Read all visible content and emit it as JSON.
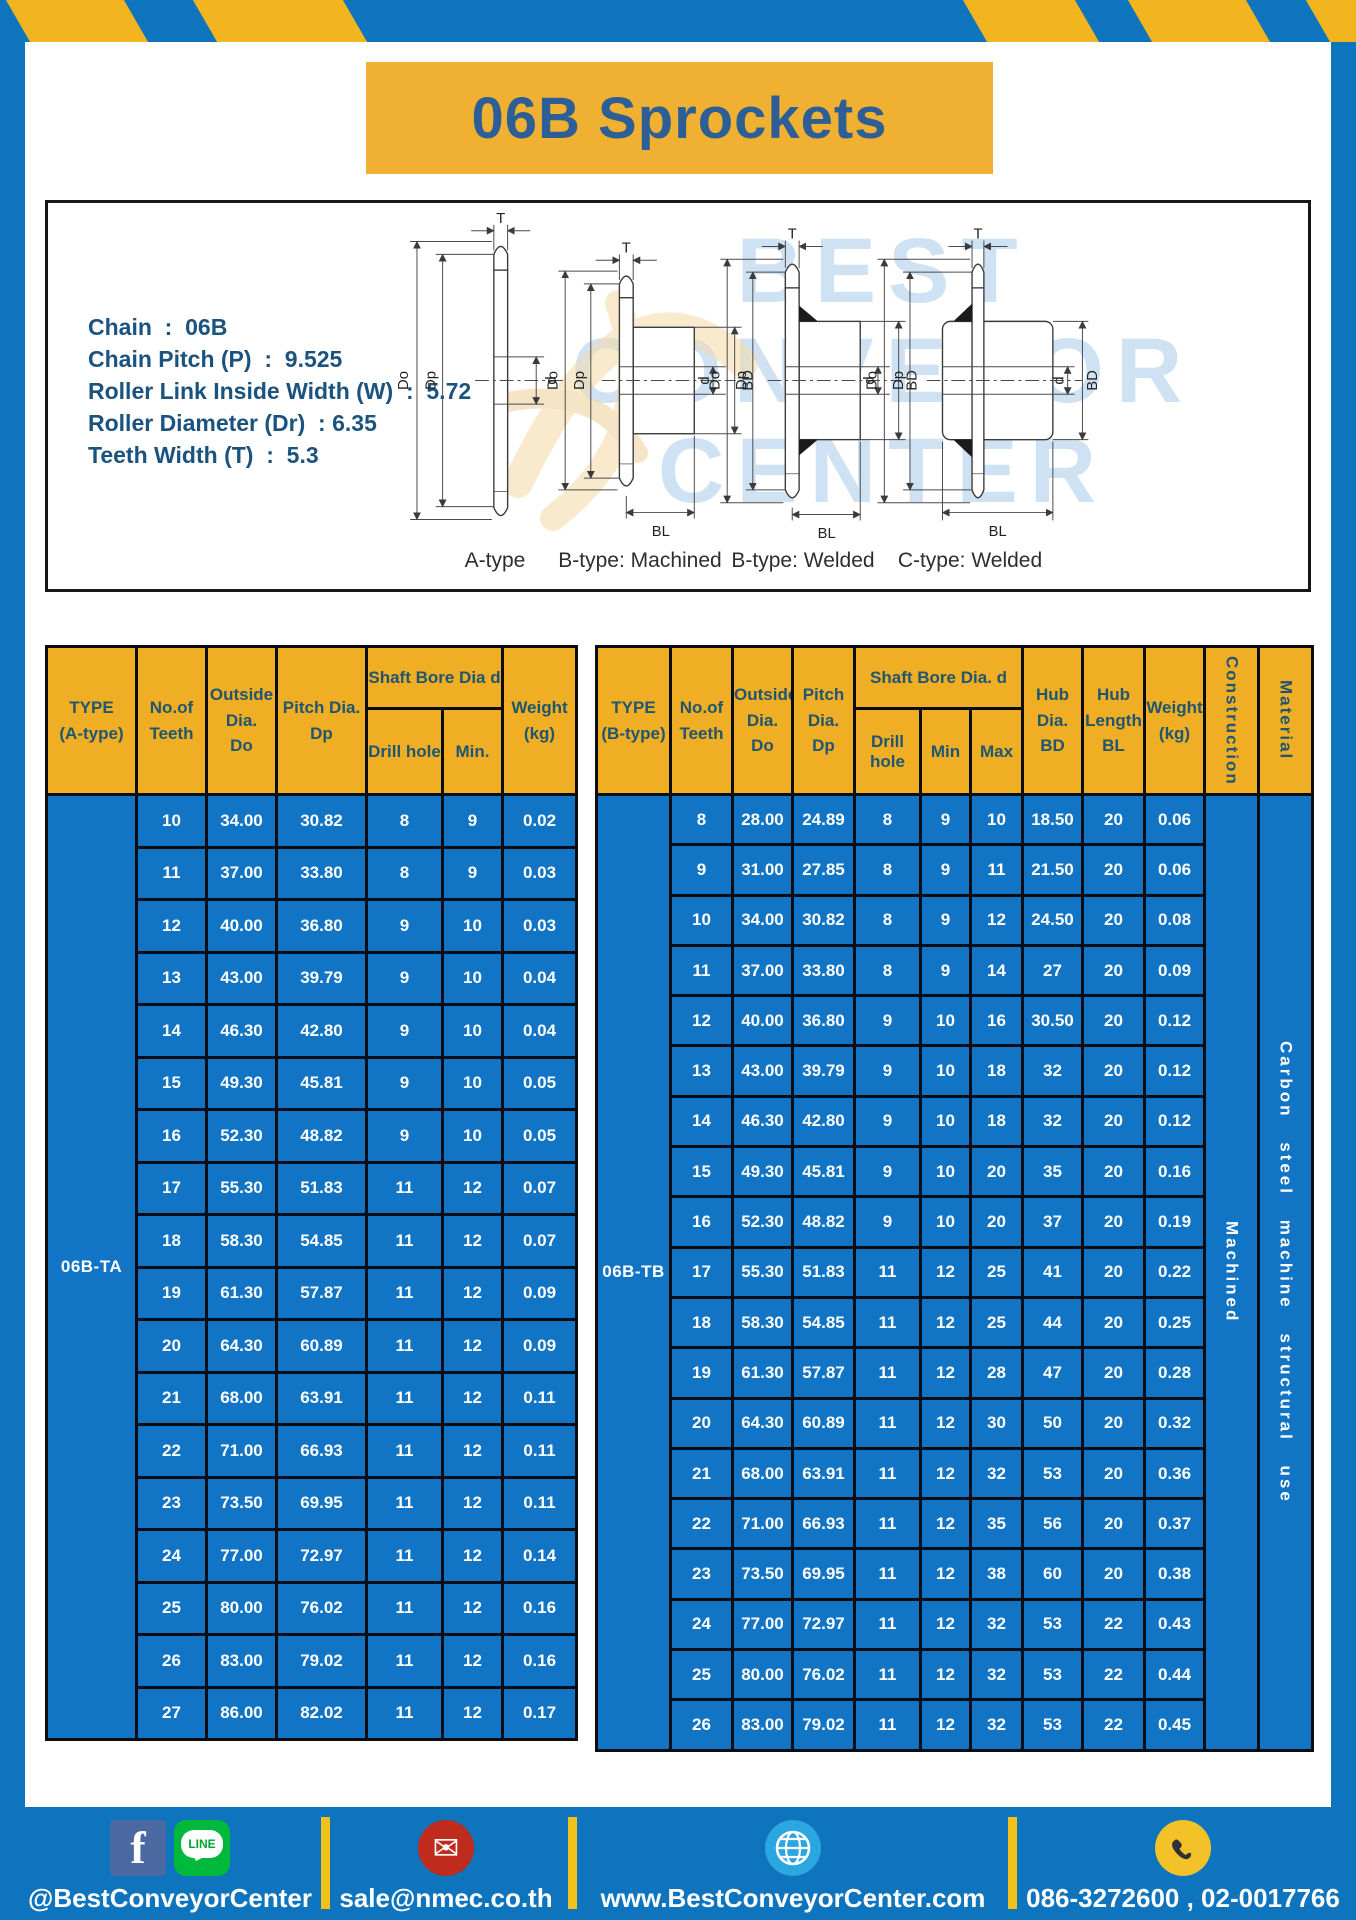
{
  "title": "06B Sprockets",
  "specs": [
    "Chain  :  06B",
    "Chain Pitch (P)  :  9.525",
    "Roller Link Inside Width (W)  :  5.72",
    "Roller Diameter (Dr)  : 6.35",
    "Teeth Width (T)  :  5.3"
  ],
  "watermark": {
    "line1": "BEST",
    "line2": "CONVEYOR",
    "line3": "CENTER"
  },
  "diagrams": [
    {
      "caption": "A-type",
      "labels": {
        "t": "T",
        "do": "Do",
        "dp": "Dp",
        "d": "d"
      }
    },
    {
      "caption": "B-type: Machined",
      "labels": {
        "t": "T",
        "do": "Do",
        "dp": "Dp",
        "d": "d",
        "bd": "BD",
        "bl": "BL"
      }
    },
    {
      "caption": "B-type: Welded",
      "labels": {
        "t": "T",
        "do": "Do",
        "dp": "Dp",
        "d": "d",
        "bd": "BD",
        "bl": "BL"
      }
    },
    {
      "caption": "C-type: Welded",
      "labels": {
        "t": "T",
        "do": "Do",
        "dp": "Dp",
        "d": "d",
        "bd": "BD",
        "bl": "BL"
      }
    }
  ],
  "table_a": {
    "header": {
      "type": [
        "TYPE",
        "(A-type)"
      ],
      "teeth": [
        "No.of",
        "Teeth"
      ],
      "outside": [
        "Outside",
        "Dia.",
        "Do"
      ],
      "pitch": [
        "Pitch Dia.",
        "Dp"
      ],
      "bore_group": "Shaft Bore Dia d",
      "drill": "Drill hole",
      "min": "Min.",
      "weight": [
        "Weight",
        "(kg)"
      ]
    },
    "type_value": "06B-TA",
    "rows": [
      {
        "teeth": "10",
        "do": "34.00",
        "dp": "30.82",
        "drill": "8",
        "min": "9",
        "weight": "0.02"
      },
      {
        "teeth": "11",
        "do": "37.00",
        "dp": "33.80",
        "drill": "8",
        "min": "9",
        "weight": "0.03"
      },
      {
        "teeth": "12",
        "do": "40.00",
        "dp": "36.80",
        "drill": "9",
        "min": "10",
        "weight": "0.03"
      },
      {
        "teeth": "13",
        "do": "43.00",
        "dp": "39.79",
        "drill": "9",
        "min": "10",
        "weight": "0.04"
      },
      {
        "teeth": "14",
        "do": "46.30",
        "dp": "42.80",
        "drill": "9",
        "min": "10",
        "weight": "0.04"
      },
      {
        "teeth": "15",
        "do": "49.30",
        "dp": "45.81",
        "drill": "9",
        "min": "10",
        "weight": "0.05"
      },
      {
        "teeth": "16",
        "do": "52.30",
        "dp": "48.82",
        "drill": "9",
        "min": "10",
        "weight": "0.05"
      },
      {
        "teeth": "17",
        "do": "55.30",
        "dp": "51.83",
        "drill": "11",
        "min": "12",
        "weight": "0.07"
      },
      {
        "teeth": "18",
        "do": "58.30",
        "dp": "54.85",
        "drill": "11",
        "min": "12",
        "weight": "0.07"
      },
      {
        "teeth": "19",
        "do": "61.30",
        "dp": "57.87",
        "drill": "11",
        "min": "12",
        "weight": "0.09"
      },
      {
        "teeth": "20",
        "do": "64.30",
        "dp": "60.89",
        "drill": "11",
        "min": "12",
        "weight": "0.09"
      },
      {
        "teeth": "21",
        "do": "68.00",
        "dp": "63.91",
        "drill": "11",
        "min": "12",
        "weight": "0.11"
      },
      {
        "teeth": "22",
        "do": "71.00",
        "dp": "66.93",
        "drill": "11",
        "min": "12",
        "weight": "0.11"
      },
      {
        "teeth": "23",
        "do": "73.50",
        "dp": "69.95",
        "drill": "11",
        "min": "12",
        "weight": "0.11"
      },
      {
        "teeth": "24",
        "do": "77.00",
        "dp": "72.97",
        "drill": "11",
        "min": "12",
        "weight": "0.14"
      },
      {
        "teeth": "25",
        "do": "80.00",
        "dp": "76.02",
        "drill": "11",
        "min": "12",
        "weight": "0.16"
      },
      {
        "teeth": "26",
        "do": "83.00",
        "dp": "79.02",
        "drill": "11",
        "min": "12",
        "weight": "0.16"
      },
      {
        "teeth": "27",
        "do": "86.00",
        "dp": "82.02",
        "drill": "11",
        "min": "12",
        "weight": "0.17"
      }
    ]
  },
  "table_b": {
    "header": {
      "type": [
        "TYPE",
        "(B-type)"
      ],
      "teeth": [
        "No.of",
        "Teeth"
      ],
      "outside": [
        "Outside",
        "Dia.",
        "Do"
      ],
      "pitch": [
        "Pitch",
        "Dia.",
        "Dp"
      ],
      "bore_group": "Shaft Bore Dia.  d",
      "drill": "Drill hole",
      "min": "Min",
      "max": "Max",
      "hub_dia": [
        "Hub",
        "Dia.",
        "BD"
      ],
      "hub_len": [
        "Hub",
        "Length",
        "BL"
      ],
      "weight": [
        "Weight",
        "(kg)"
      ],
      "construction": "Construction",
      "material": "Material"
    },
    "type_value": "06B-TB",
    "construction_value": "Machined",
    "material_value": "Carbon steel machine structural use",
    "rows": [
      {
        "teeth": "8",
        "do": "28.00",
        "dp": "24.89",
        "drill": "8",
        "min": "9",
        "max": "10",
        "bd": "18.50",
        "bl": "20",
        "weight": "0.06"
      },
      {
        "teeth": "9",
        "do": "31.00",
        "dp": "27.85",
        "drill": "8",
        "min": "9",
        "max": "11",
        "bd": "21.50",
        "bl": "20",
        "weight": "0.06"
      },
      {
        "teeth": "10",
        "do": "34.00",
        "dp": "30.82",
        "drill": "8",
        "min": "9",
        "max": "12",
        "bd": "24.50",
        "bl": "20",
        "weight": "0.08"
      },
      {
        "teeth": "11",
        "do": "37.00",
        "dp": "33.80",
        "drill": "8",
        "min": "9",
        "max": "14",
        "bd": "27",
        "bl": "20",
        "weight": "0.09"
      },
      {
        "teeth": "12",
        "do": "40.00",
        "dp": "36.80",
        "drill": "9",
        "min": "10",
        "max": "16",
        "bd": "30.50",
        "bl": "20",
        "weight": "0.12"
      },
      {
        "teeth": "13",
        "do": "43.00",
        "dp": "39.79",
        "drill": "9",
        "min": "10",
        "max": "18",
        "bd": "32",
        "bl": "20",
        "weight": "0.12"
      },
      {
        "teeth": "14",
        "do": "46.30",
        "dp": "42.80",
        "drill": "9",
        "min": "10",
        "max": "18",
        "bd": "32",
        "bl": "20",
        "weight": "0.12"
      },
      {
        "teeth": "15",
        "do": "49.30",
        "dp": "45.81",
        "drill": "9",
        "min": "10",
        "max": "20",
        "bd": "35",
        "bl": "20",
        "weight": "0.16"
      },
      {
        "teeth": "16",
        "do": "52.30",
        "dp": "48.82",
        "drill": "9",
        "min": "10",
        "max": "20",
        "bd": "37",
        "bl": "20",
        "weight": "0.19"
      },
      {
        "teeth": "17",
        "do": "55.30",
        "dp": "51.83",
        "drill": "11",
        "min": "12",
        "max": "25",
        "bd": "41",
        "bl": "20",
        "weight": "0.22"
      },
      {
        "teeth": "18",
        "do": "58.30",
        "dp": "54.85",
        "drill": "11",
        "min": "12",
        "max": "25",
        "bd": "44",
        "bl": "20",
        "weight": "0.25"
      },
      {
        "teeth": "19",
        "do": "61.30",
        "dp": "57.87",
        "drill": "11",
        "min": "12",
        "max": "28",
        "bd": "47",
        "bl": "20",
        "weight": "0.28"
      },
      {
        "teeth": "20",
        "do": "64.30",
        "dp": "60.89",
        "drill": "11",
        "min": "12",
        "max": "30",
        "bd": "50",
        "bl": "20",
        "weight": "0.32"
      },
      {
        "teeth": "21",
        "do": "68.00",
        "dp": "63.91",
        "drill": "11",
        "min": "12",
        "max": "32",
        "bd": "53",
        "bl": "20",
        "weight": "0.36"
      },
      {
        "teeth": "22",
        "do": "71.00",
        "dp": "66.93",
        "drill": "11",
        "min": "12",
        "max": "35",
        "bd": "56",
        "bl": "20",
        "weight": "0.37"
      },
      {
        "teeth": "23",
        "do": "73.50",
        "dp": "69.95",
        "drill": "11",
        "min": "12",
        "max": "38",
        "bd": "60",
        "bl": "20",
        "weight": "0.38"
      },
      {
        "teeth": "24",
        "do": "77.00",
        "dp": "72.97",
        "drill": "11",
        "min": "12",
        "max": "32",
        "bd": "53",
        "bl": "22",
        "weight": "0.43"
      },
      {
        "teeth": "25",
        "do": "80.00",
        "dp": "76.02",
        "drill": "11",
        "min": "12",
        "max": "32",
        "bd": "53",
        "bl": "22",
        "weight": "0.44"
      },
      {
        "teeth": "26",
        "do": "83.00",
        "dp": "79.02",
        "drill": "11",
        "min": "12",
        "max": "32",
        "bd": "53",
        "bl": "22",
        "weight": "0.45"
      }
    ]
  },
  "footer": {
    "social_label": "@BestConveyorCenter",
    "line_text": "LINE",
    "facebook_letter": "f",
    "email": "sale@nmec.co.th",
    "mail_glyph": "✉",
    "website": "www.BestConveyorCenter.com",
    "phones": "086-3272600 , 02-0017766"
  },
  "colors": {
    "frame_blue": "#0e74bd",
    "cell_blue": "#1174c5",
    "header_yellow": "#efae24",
    "stripe_yellow": "#f2b41f",
    "title_text": "#2d5e95"
  }
}
